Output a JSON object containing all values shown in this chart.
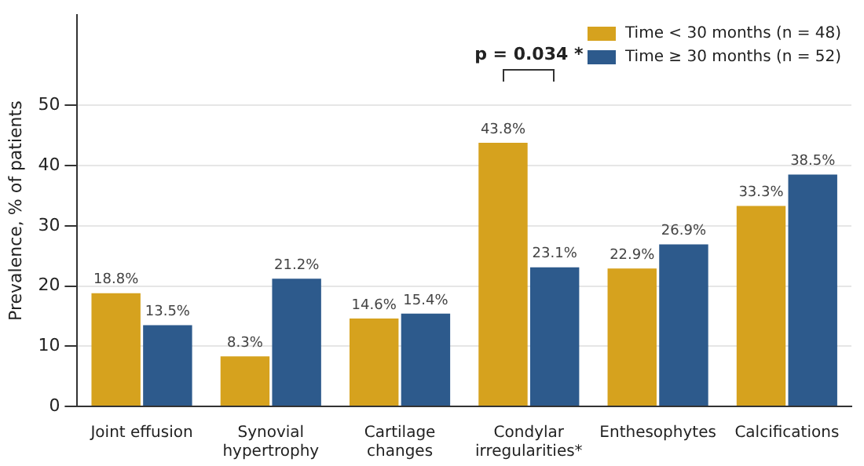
{
  "chart_data": {
    "type": "bar",
    "ylabel": "Prevalence, % of patients",
    "categories": [
      "Joint effusion",
      "Synovial\nhypertrophy",
      "Cartilage\nchanges",
      "Condylar\nirregularities*",
      "Enthesophytes",
      "Calcifications"
    ],
    "series": [
      {
        "name": "Time < 30 months (n = 48)",
        "color": "#d6a21e",
        "values": [
          18.8,
          8.3,
          14.6,
          43.8,
          22.9,
          33.3
        ],
        "value_labels": [
          "18.8%",
          "8.3%",
          "14.6%",
          "43.8%",
          "22.9%",
          "33.3%"
        ]
      },
      {
        "name": "Time ≥ 30 months (n = 52)",
        "color": "#2d5a8c",
        "values": [
          13.5,
          21.2,
          15.4,
          23.1,
          26.9,
          38.5
        ],
        "value_labels": [
          "13.5%",
          "21.2%",
          "15.4%",
          "23.1%",
          "26.9%",
          "38.5%"
        ]
      }
    ],
    "ylim": [
      0,
      65
    ],
    "yticks": [
      0,
      10,
      20,
      30,
      40,
      50
    ],
    "grid": "y",
    "legend": "top right",
    "annotations": [
      "p = 0.034 *"
    ]
  }
}
